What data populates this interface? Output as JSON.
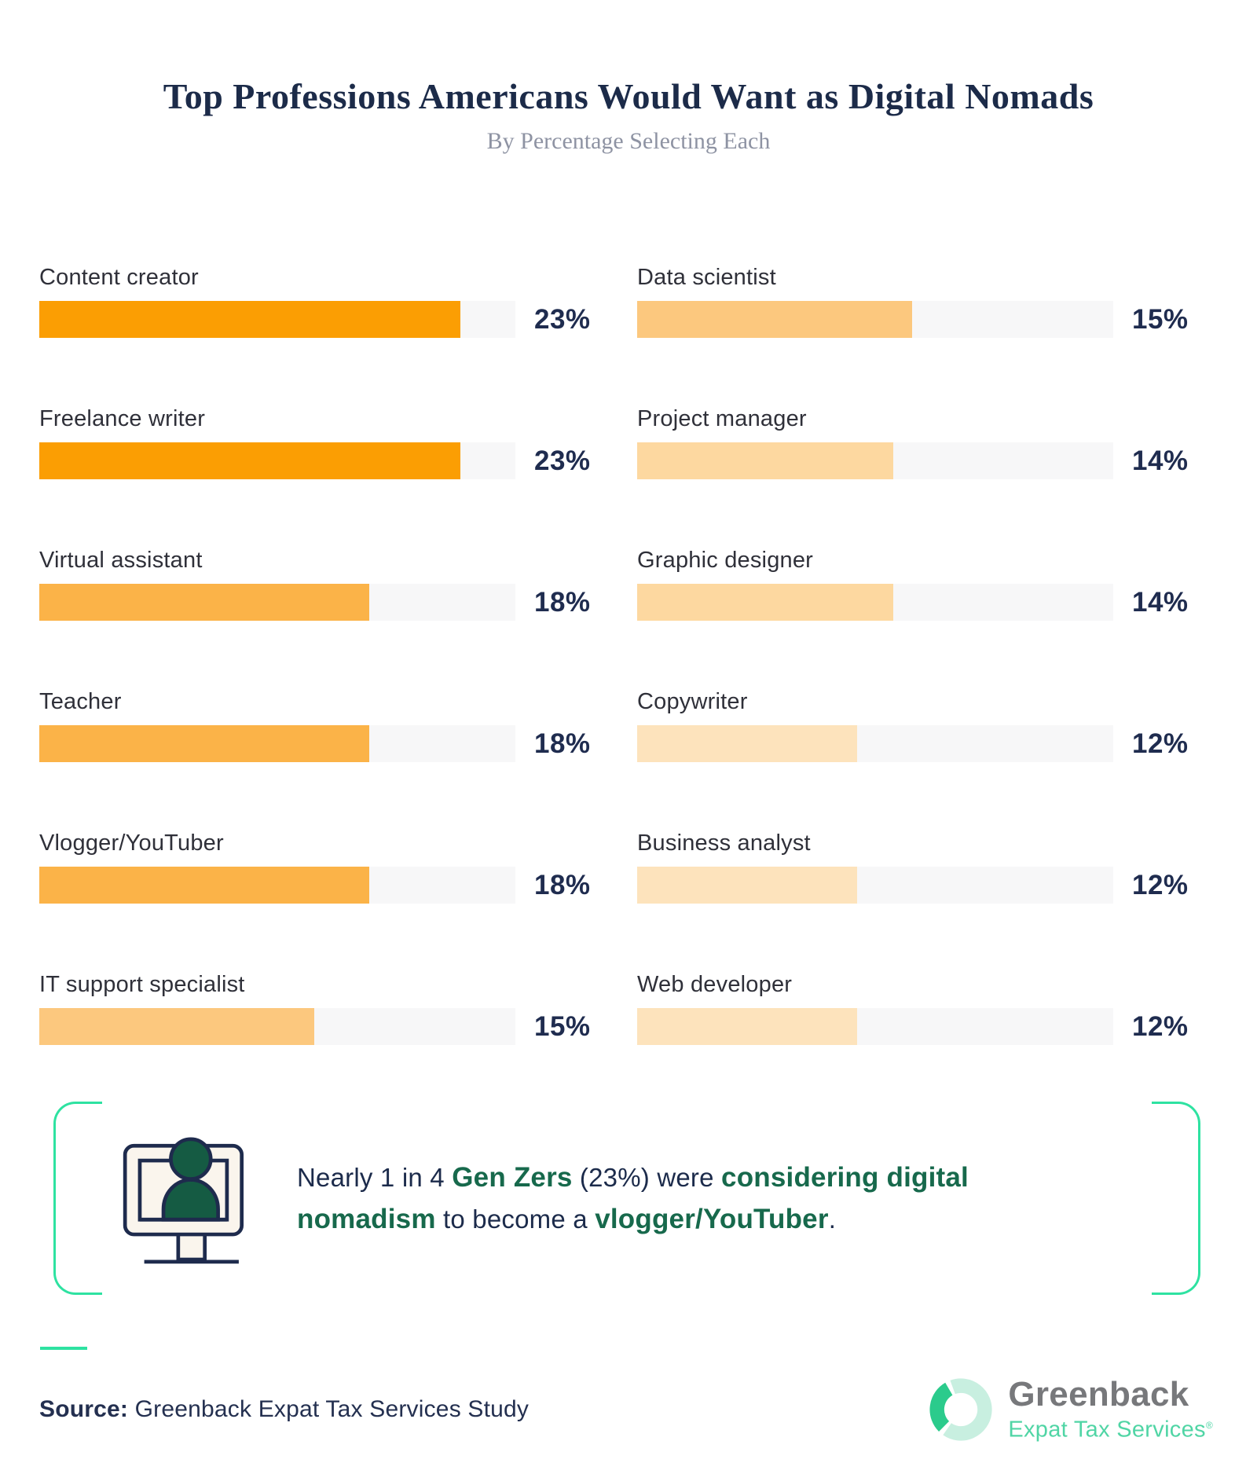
{
  "title": "Top Professions Americans Would Want as Digital Nomads",
  "subtitle": "By Percentage Selecting Each",
  "chart_data": {
    "type": "bar",
    "orientation": "horizontal",
    "unit": "%",
    "axis_max": 26,
    "track_color": "#F7F7F8",
    "columns": [
      {
        "items": [
          {
            "label": "Content creator",
            "value": 23
          },
          {
            "label": "Freelance writer",
            "value": 23
          },
          {
            "label": "Virtual assistant",
            "value": 18
          },
          {
            "label": "Teacher",
            "value": 18
          },
          {
            "label": "Vlogger/YouTuber",
            "value": 18
          },
          {
            "label": "IT support specialist",
            "value": 15
          }
        ]
      },
      {
        "items": [
          {
            "label": "Data scientist",
            "value": 15
          },
          {
            "label": "Project manager",
            "value": 14
          },
          {
            "label": "Graphic designer",
            "value": 14
          },
          {
            "label": "Copywriter",
            "value": 12
          },
          {
            "label": "Business analyst",
            "value": 12
          },
          {
            "label": "Web developer",
            "value": 12
          }
        ]
      }
    ],
    "value_colors": {
      "23": "#FB9E03",
      "18": "#FBB348",
      "15": "#FCC87E",
      "14": "#FDD8A0",
      "12": "#FDE3BC"
    }
  },
  "callout": {
    "accent_color": "#2EE2A1",
    "highlight_color": "#17694C",
    "lines": [
      [
        {
          "text": "Nearly 1 in 4 ",
          "style": "normal"
        },
        {
          "text": "Gen Zers",
          "style": "highlight"
        },
        {
          "text": " (23%) were ",
          "style": "normal"
        },
        {
          "text": "considering digital",
          "style": "highlight"
        }
      ],
      [
        {
          "text": "nomadism",
          "style": "highlight"
        },
        {
          "text": " to become a ",
          "style": "normal"
        },
        {
          "text": "vlogger/YouTuber",
          "style": "highlight"
        },
        {
          "text": ".",
          "style": "normal"
        }
      ]
    ]
  },
  "footer": {
    "source_label": "Source:",
    "source_text": " Greenback Expat Tax Services Study",
    "logo": {
      "name": "Greenback",
      "tagline": "Expat Tax Services",
      "registered_mark": "®"
    }
  }
}
